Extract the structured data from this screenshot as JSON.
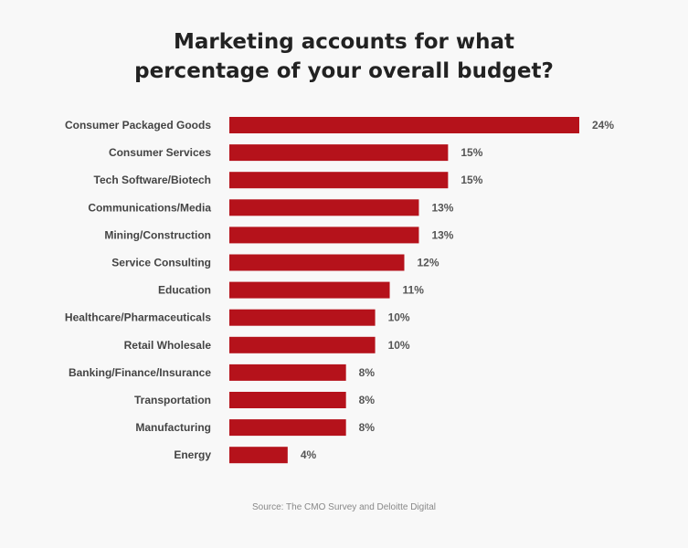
{
  "chart_data": {
    "type": "bar",
    "orientation": "horizontal",
    "title_lines": [
      "Marketing accounts for what",
      "percentage of your overall budget?"
    ],
    "categories": [
      "Consumer Packaged Goods",
      "Consumer Services",
      "Tech Software/Biotech",
      "Communications/Media",
      "Mining/Construction",
      "Service Consulting",
      "Education",
      "Healthcare/Pharmaceuticals",
      "Retail Wholesale",
      "Banking/Finance/Insurance",
      "Transportation",
      "Manufacturing",
      "Energy"
    ],
    "values": [
      24,
      15,
      15,
      13,
      13,
      12,
      11,
      10,
      10,
      8,
      8,
      8,
      4
    ],
    "value_labels": [
      "24%",
      "15%",
      "15%",
      "13%",
      "13%",
      "12%",
      "11%",
      "10%",
      "10%",
      "8%",
      "8%",
      "8%",
      "4%"
    ],
    "xlim": [
      0,
      24
    ],
    "grid": false,
    "legend": "none",
    "bar_color": "#b5121b",
    "source": "Source: The CMO Survey and Deloitte Digital"
  }
}
